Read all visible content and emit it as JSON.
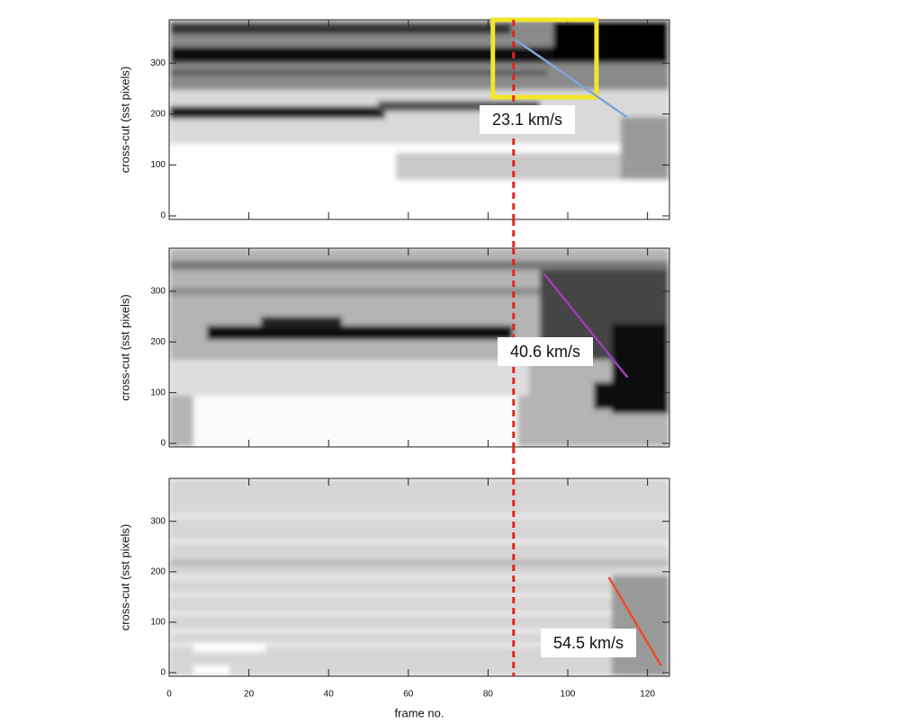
{
  "chart_data": [
    {
      "type": "image",
      "ylabel": "cross-cut (sst pixels)",
      "xlim": [
        0,
        125.5
      ],
      "ylim": [
        -7,
        385
      ],
      "xticks": [
        0,
        20,
        40,
        60,
        80,
        100,
        120
      ],
      "yticks": [
        0,
        100,
        200,
        300
      ],
      "vline": {
        "x": 86.4,
        "color": "#e0261f"
      },
      "box": {
        "x": [
          81.2,
          107.2
        ],
        "y": [
          233,
          385
        ],
        "color": "#f3e52a"
      },
      "fit": {
        "x": [
          86.8,
          114.8
        ],
        "y": [
          346,
          194
        ],
        "color": "#7fa6d8"
      },
      "annotation": "23.1 km/s"
    },
    {
      "type": "image",
      "ylabel": "cross-cut (sst pixels)",
      "xlim": [
        0,
        125.5
      ],
      "ylim": [
        -7,
        385
      ],
      "xticks": [
        0,
        20,
        40,
        60,
        80,
        100,
        120
      ],
      "yticks": [
        0,
        100,
        200,
        300
      ],
      "vline": {
        "x": 86.4,
        "color": "#e0261f"
      },
      "fit": {
        "x": [
          94.1,
          115
        ],
        "y": [
          334,
          130
        ],
        "color": "#9b3fb5"
      },
      "annotation": "40.6 km/s"
    },
    {
      "type": "image",
      "ylabel": "cross-cut (sst pixels)",
      "xlabel": "frame no.",
      "xlim": [
        0,
        125.5
      ],
      "ylim": [
        -7,
        385
      ],
      "xticks": [
        0,
        20,
        40,
        60,
        80,
        100,
        120
      ],
      "yticks": [
        0,
        100,
        200,
        300
      ],
      "vline": {
        "x": 86.4,
        "color": "#e0261f"
      },
      "fit": {
        "x": [
          110.3,
          123.4
        ],
        "y": [
          189,
          14
        ],
        "color": "#ef4a2a"
      },
      "annotation": "54.5 km/s"
    }
  ]
}
